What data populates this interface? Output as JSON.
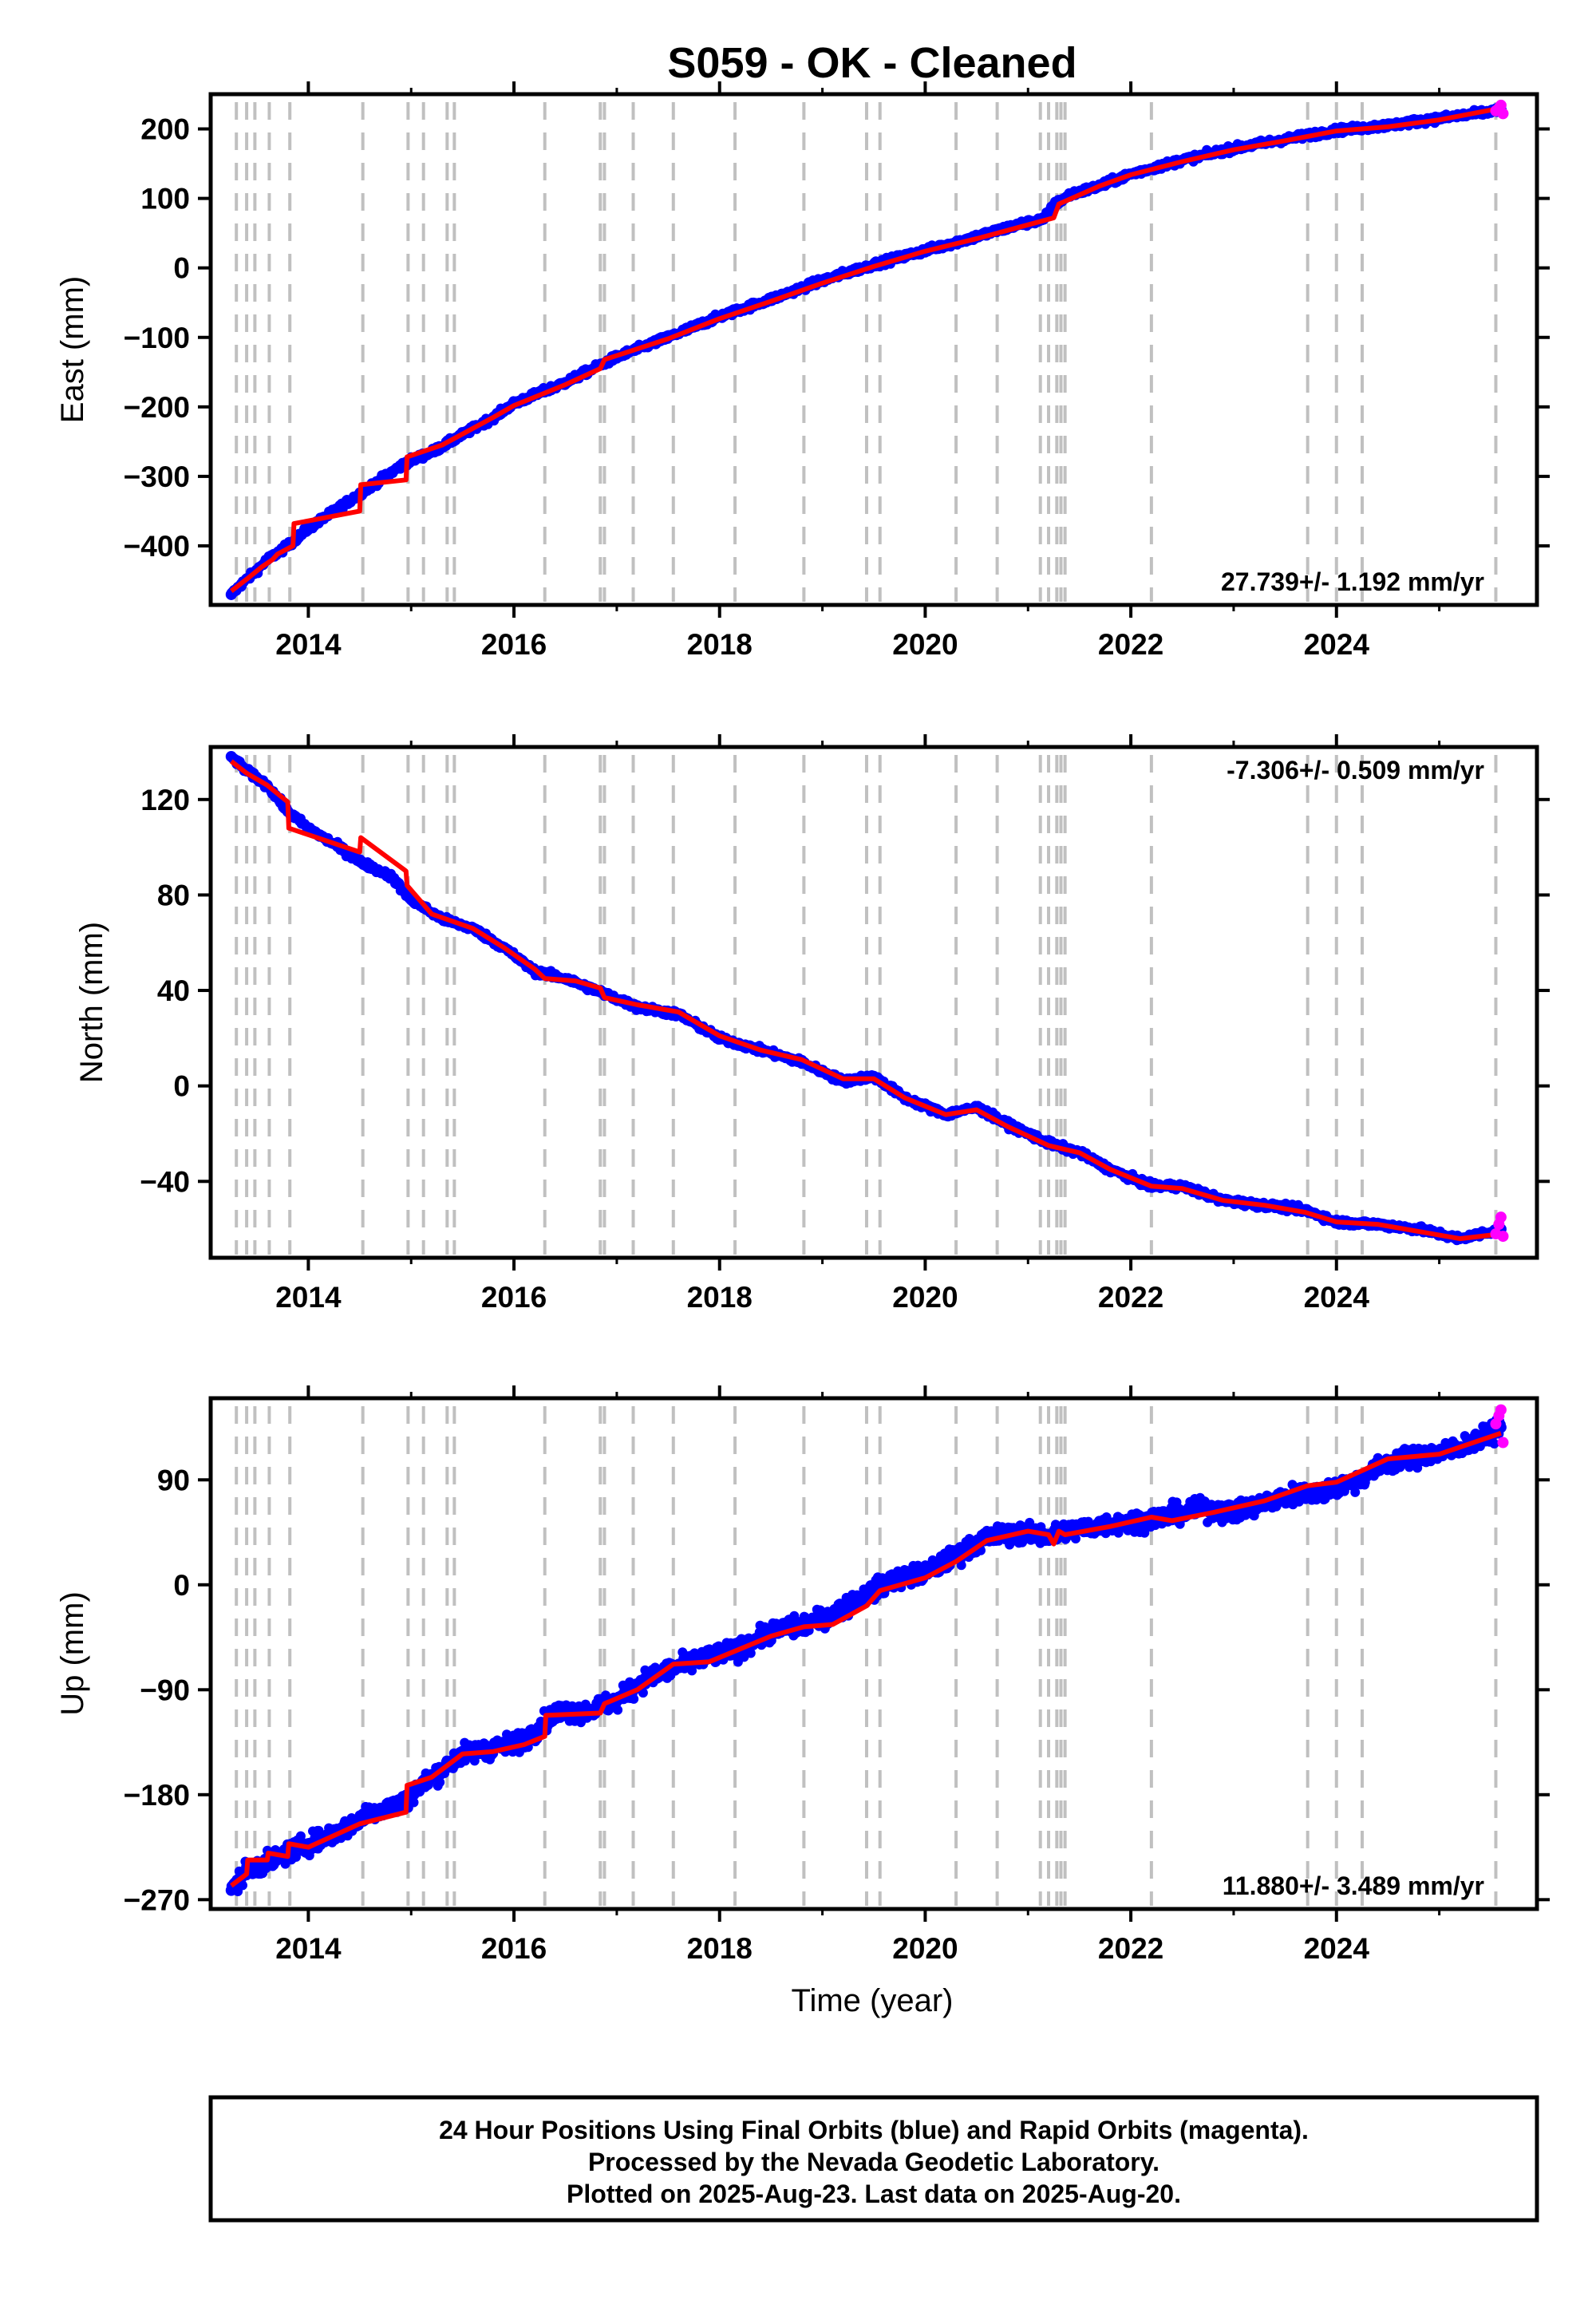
{
  "title": "S059  - OK - Cleaned",
  "xlabel": "Time (year)",
  "footer": {
    "lines": [
      "24 Hour Positions Using Final Orbits (blue) and Rapid Orbits (magenta).",
      "Processed by the Nevada Geodetic Laboratory.",
      "Plotted on 2025-Aug-23. Last data on 2025-Aug-20."
    ]
  },
  "colors": {
    "final": "#0000ff",
    "rapid": "#ff00ff",
    "model": "#ff0000",
    "events": "#c0c0c0"
  },
  "chart_data": [
    {
      "type": "scatter",
      "panel": "east",
      "ylabel": "East (mm)",
      "xlim": [
        2013.05,
        2025.95
      ],
      "ylim": [
        -485,
        250
      ],
      "x_ticks": [
        2014,
        2016,
        2018,
        2020,
        2022,
        2024
      ],
      "x_tick_labels": [
        "2014",
        "2016",
        "2018",
        "2020",
        "2022",
        "2024"
      ],
      "y_ticks": [
        -400,
        -300,
        -200,
        -100,
        0,
        100,
        200
      ],
      "y_tick_labels": [
        "−400",
        "−300",
        "−200",
        "−100",
        "0",
        "100",
        "200"
      ],
      "rate_label": "27.739+/- 1.192 mm/yr",
      "rate_position": "bottom-right",
      "events": [
        2013.3,
        2013.4,
        2013.48,
        2013.62,
        2013.82,
        2014.53,
        2014.97,
        2015.12,
        2015.35,
        2015.42,
        2016.3,
        2016.84,
        2016.88,
        2017.16,
        2017.55,
        2018.15,
        2018.82,
        2019.43,
        2019.56,
        2020.3,
        2020.7,
        2021.12,
        2021.2,
        2021.28,
        2021.32,
        2021.36,
        2022.2,
        2023.72,
        2024.0,
        2024.25,
        2025.55
      ],
      "series": [
        {
          "name": "Final Orbits (blue)",
          "x": [
            2013.25,
            2013.35,
            2013.5,
            2013.6,
            2013.8,
            2014.0,
            2014.3,
            2014.5,
            2014.7,
            2014.95,
            2015.2,
            2015.5,
            2015.8,
            2016.0,
            2016.5,
            2017.0,
            2017.5,
            2018.0,
            2018.5,
            2019.0,
            2019.5,
            2020.0,
            2020.5,
            2020.9,
            2021.15,
            2021.25,
            2021.4,
            2021.7,
            2022.0,
            2022.5,
            2023.0,
            2023.5,
            2024.0,
            2024.5,
            2025.0,
            2025.5,
            2025.6
          ],
          "y": [
            -470,
            -455,
            -435,
            -420,
            -400,
            -375,
            -345,
            -325,
            -305,
            -280,
            -265,
            -240,
            -215,
            -195,
            -165,
            -128,
            -100,
            -70,
            -45,
            -18,
            5,
            25,
            45,
            62,
            70,
            90,
            105,
            118,
            135,
            155,
            172,
            185,
            198,
            205,
            215,
            225,
            228
          ]
        },
        {
          "name": "Rapid Orbits (magenta)",
          "x": [
            2025.55,
            2025.58,
            2025.6,
            2025.62
          ],
          "y": [
            226,
            230,
            234,
            222
          ]
        }
      ],
      "model": {
        "x": [
          2013.25,
          2013.4,
          2013.55,
          2013.65,
          2013.7,
          2013.85,
          2013.86,
          2014.5,
          2014.51,
          2014.95,
          2014.96,
          2015.3,
          2015.8,
          2016.0,
          2016.5,
          2016.84,
          2016.88,
          2017.5,
          2018.0,
          2018.5,
          2019.0,
          2019.5,
          2020.0,
          2020.5,
          2021.0,
          2021.25,
          2021.3,
          2021.7,
          2022.0,
          2022.5,
          2023.0,
          2023.5,
          2024.0,
          2024.5,
          2025.0,
          2025.6
        ],
        "y": [
          -465,
          -448,
          -430,
          -420,
          -412,
          -400,
          -368,
          -350,
          -312,
          -305,
          -272,
          -255,
          -215,
          -198,
          -168,
          -145,
          -132,
          -102,
          -73,
          -48,
          -22,
          2,
          24,
          42,
          62,
          72,
          92,
          118,
          134,
          153,
          170,
          183,
          197,
          203,
          213,
          230
        ]
      }
    },
    {
      "type": "scatter",
      "panel": "north",
      "ylabel": "North (mm)",
      "xlim": [
        2013.05,
        2025.95
      ],
      "ylim": [
        -72,
        142
      ],
      "x_ticks": [
        2014,
        2016,
        2018,
        2020,
        2022,
        2024
      ],
      "x_tick_labels": [
        "2014",
        "2016",
        "2018",
        "2020",
        "2022",
        "2024"
      ],
      "y_ticks": [
        -40,
        0,
        40,
        80,
        120
      ],
      "y_tick_labels": [
        "−40",
        "0",
        "40",
        "80",
        "120"
      ],
      "rate_label": "-7.306+/- 0.509 mm/yr",
      "rate_position": "top-right",
      "events": [
        2013.3,
        2013.4,
        2013.48,
        2013.62,
        2013.82,
        2014.53,
        2014.97,
        2015.12,
        2015.35,
        2015.42,
        2016.3,
        2016.84,
        2016.88,
        2017.16,
        2017.55,
        2018.15,
        2018.82,
        2019.43,
        2019.56,
        2020.3,
        2020.7,
        2021.12,
        2021.2,
        2021.28,
        2021.32,
        2021.36,
        2022.2,
        2023.72,
        2024.0,
        2024.25,
        2025.55
      ],
      "series": [
        {
          "name": "Final Orbits (blue)",
          "x": [
            2013.25,
            2013.4,
            2013.6,
            2013.8,
            2014.0,
            2014.3,
            2014.5,
            2014.8,
            2015.0,
            2015.3,
            2015.6,
            2015.9,
            2016.2,
            2016.5,
            2016.8,
            2017.2,
            2017.6,
            2018.0,
            2018.4,
            2018.8,
            2019.2,
            2019.5,
            2019.8,
            2020.2,
            2020.5,
            2020.8,
            2021.2,
            2021.5,
            2021.8,
            2022.2,
            2022.5,
            2022.9,
            2023.3,
            2023.7,
            2024.0,
            2024.4,
            2024.8,
            2025.2,
            2025.6
          ],
          "y": [
            138,
            132,
            126,
            115,
            108,
            100,
            94,
            88,
            78,
            70,
            66,
            58,
            48,
            45,
            40,
            33,
            30,
            20,
            15,
            10,
            2,
            4,
            -5,
            -12,
            -9,
            -16,
            -24,
            -28,
            -35,
            -42,
            -42,
            -48,
            -50,
            -52,
            -57,
            -58,
            -60,
            -64,
            -60
          ]
        },
        {
          "name": "Rapid Orbits (magenta)",
          "x": [
            2025.55,
            2025.58,
            2025.6,
            2025.62
          ],
          "y": [
            -62,
            -58,
            -55,
            -63
          ]
        }
      ],
      "model": {
        "x": [
          2013.25,
          2013.4,
          2013.6,
          2013.8,
          2013.81,
          2014.5,
          2014.51,
          2014.95,
          2014.96,
          2015.2,
          2015.6,
          2015.9,
          2016.2,
          2016.3,
          2016.6,
          2016.84,
          2016.88,
          2017.2,
          2017.6,
          2018.0,
          2018.4,
          2018.8,
          2019.2,
          2019.5,
          2019.8,
          2020.2,
          2020.5,
          2020.8,
          2021.2,
          2021.5,
          2021.8,
          2022.2,
          2022.5,
          2022.9,
          2023.3,
          2023.7,
          2024.0,
          2024.4,
          2024.8,
          2025.2,
          2025.6
        ],
        "y": [
          136,
          131,
          126,
          119,
          108,
          98,
          104,
          90,
          84,
          72,
          66,
          58,
          49,
          45,
          44,
          41,
          37,
          34,
          31,
          21,
          15,
          11,
          3,
          3,
          -5,
          -12,
          -10,
          -17,
          -25,
          -28,
          -35,
          -42,
          -43,
          -48,
          -50,
          -53,
          -57,
          -58,
          -61,
          -64,
          -62
        ]
      }
    },
    {
      "type": "scatter",
      "panel": "up",
      "ylabel": "Up (mm)",
      "xlim": [
        2013.05,
        2025.95
      ],
      "ylim": [
        -278,
        160
      ],
      "x_ticks": [
        2014,
        2016,
        2018,
        2020,
        2022,
        2024
      ],
      "x_tick_labels": [
        "2014",
        "2016",
        "2018",
        "2020",
        "2022",
        "2024"
      ],
      "y_ticks": [
        -270,
        -180,
        -90,
        0,
        90
      ],
      "y_tick_labels": [
        "−270",
        "−180",
        "−90",
        "0",
        "90"
      ],
      "rate_label": "11.880+/- 3.489 mm/yr",
      "rate_position": "bottom-right",
      "events": [
        2013.3,
        2013.4,
        2013.48,
        2013.62,
        2013.82,
        2014.53,
        2014.97,
        2015.12,
        2015.35,
        2015.42,
        2016.3,
        2016.84,
        2016.88,
        2017.16,
        2017.55,
        2018.15,
        2018.82,
        2019.43,
        2019.56,
        2020.3,
        2020.7,
        2021.12,
        2021.2,
        2021.28,
        2021.32,
        2021.36,
        2022.2,
        2023.72,
        2024.0,
        2024.25,
        2025.55
      ],
      "series": [
        {
          "name": "Final Orbits (blue)",
          "x": [
            2013.25,
            2013.4,
            2013.6,
            2013.8,
            2014.0,
            2014.3,
            2014.6,
            2014.9,
            2015.2,
            2015.5,
            2015.8,
            2016.1,
            2016.4,
            2016.7,
            2017.0,
            2017.3,
            2017.6,
            2017.9,
            2018.2,
            2018.5,
            2018.8,
            2019.1,
            2019.4,
            2019.7,
            2020.0,
            2020.3,
            2020.6,
            2020.9,
            2021.2,
            2021.5,
            2021.8,
            2022.1,
            2022.4,
            2022.7,
            2023.0,
            2023.3,
            2023.6,
            2023.9,
            2024.2,
            2024.5,
            2024.8,
            2025.1,
            2025.4,
            2025.6
          ],
          "y": [
            -262,
            -245,
            -238,
            -230,
            -222,
            -212,
            -195,
            -188,
            -165,
            -145,
            -140,
            -133,
            -110,
            -108,
            -100,
            -80,
            -70,
            -62,
            -55,
            -40,
            -35,
            -25,
            -10,
            5,
            10,
            25,
            40,
            45,
            42,
            48,
            52,
            55,
            60,
            65,
            62,
            70,
            78,
            80,
            90,
            105,
            110,
            115,
            125,
            135
          ]
        },
        {
          "name": "Rapid Orbits (magenta)",
          "x": [
            2025.55,
            2025.58,
            2025.6,
            2025.62
          ],
          "y": [
            138,
            145,
            150,
            122
          ]
        }
      ],
      "model": {
        "x": [
          2013.25,
          2013.4,
          2013.41,
          2013.6,
          2013.61,
          2013.8,
          2013.81,
          2014.0,
          2014.5,
          2014.95,
          2014.96,
          2015.2,
          2015.5,
          2015.8,
          2016.1,
          2016.3,
          2016.31,
          2016.84,
          2016.88,
          2017.2,
          2017.55,
          2017.9,
          2018.2,
          2018.5,
          2018.82,
          2019.1,
          2019.43,
          2019.56,
          2020.0,
          2020.3,
          2020.6,
          2021.0,
          2021.2,
          2021.25,
          2021.3,
          2021.36,
          2021.8,
          2022.2,
          2022.4,
          2022.8,
          2023.3,
          2023.72,
          2024.0,
          2024.25,
          2024.5,
          2025.0,
          2025.6
        ],
        "y": [
          -258,
          -248,
          -236,
          -236,
          -230,
          -233,
          -222,
          -225,
          -205,
          -195,
          -172,
          -165,
          -145,
          -143,
          -137,
          -130,
          -112,
          -110,
          -102,
          -90,
          -68,
          -66,
          -55,
          -44,
          -36,
          -34,
          -18,
          -5,
          6,
          20,
          38,
          46,
          43,
          35,
          46,
          43,
          50,
          58,
          55,
          62,
          72,
          85,
          88,
          98,
          108,
          112,
          130
        ]
      }
    }
  ]
}
